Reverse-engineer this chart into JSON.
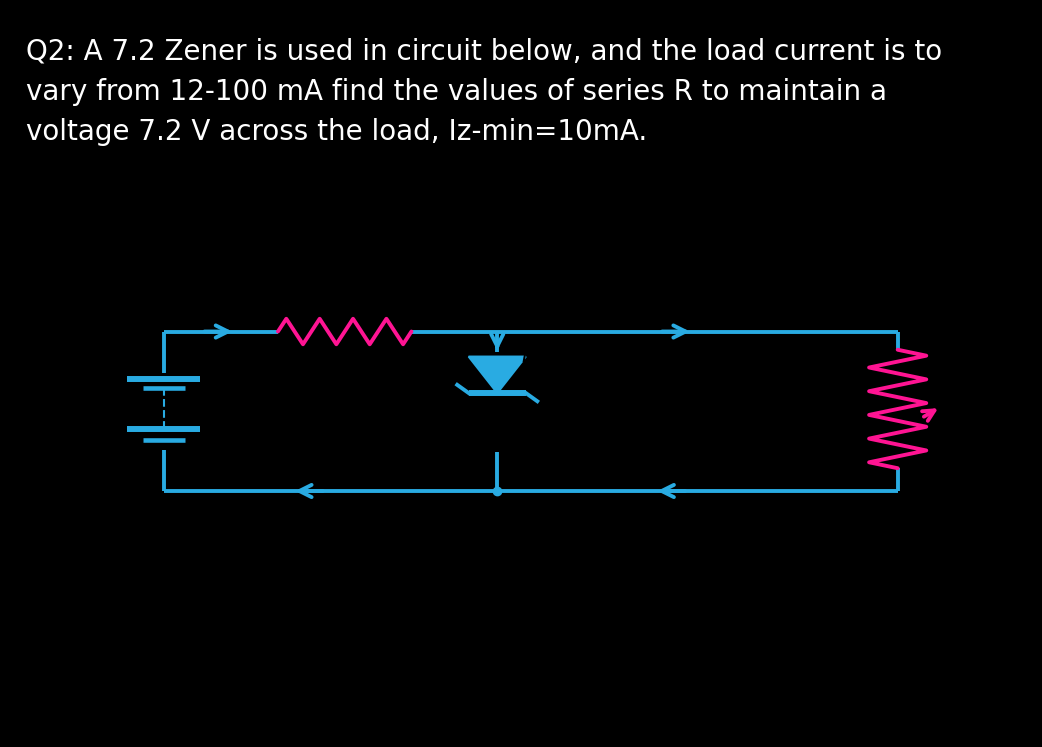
{
  "bg_color": "#000000",
  "circuit_bg": "#ffffff",
  "text_color": "#ffffff",
  "cyan": "#29ABE2",
  "magenta": "#FF1493",
  "title_line1": "Q2: A 7.2 Zener is used in circuit below, and the load current is to",
  "title_line2": "vary from 12-100 mA find the values of series R to maintain a",
  "title_line3": "voltage 7.2 V across the load, Iz-min=10mA.",
  "title_fontsize": 20,
  "lw": 2.8
}
